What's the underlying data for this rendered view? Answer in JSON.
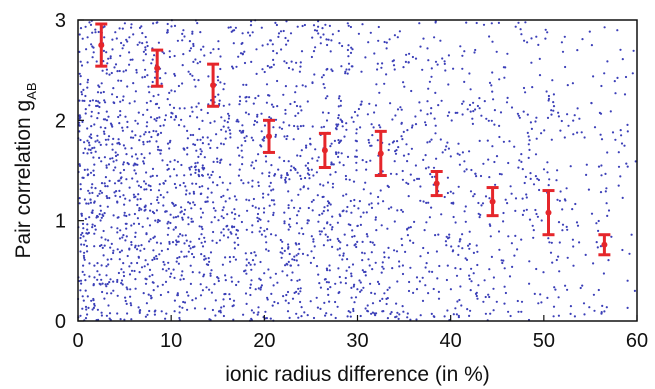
{
  "chart_data": {
    "type": "scatter",
    "xlabel": "ionic radius difference (in %)",
    "ylabel_main": "Pair correlation  g",
    "ylabel_sub": "AB",
    "xlim": [
      0,
      60
    ],
    "ylim": [
      0,
      3
    ],
    "xticks": [
      "0",
      "10",
      "20",
      "30",
      "40",
      "50",
      "60"
    ],
    "yticks": [
      "0",
      "1",
      "2",
      "3"
    ],
    "grid": false,
    "legend": "none",
    "colors": {
      "scatter": "#3b3fb8",
      "errorbar": "#e5262b",
      "axis": "#111111"
    },
    "series": [
      {
        "kind": "scatter-cloud",
        "description_of_distribution": "dense cloud of small points spanning x 0–60, y 0–3, density decreasing with x",
        "count": 2600
      },
      {
        "kind": "errorbar",
        "x": [
          2.5,
          8.5,
          14.5,
          20.5,
          26.5,
          32.5,
          38.5,
          44.5,
          50.5,
          56.5
        ],
        "y": [
          2.75,
          2.52,
          2.35,
          1.84,
          1.7,
          1.67,
          1.37,
          1.19,
          1.08,
          0.76
        ],
        "err": [
          0.21,
          0.18,
          0.21,
          0.16,
          0.17,
          0.22,
          0.12,
          0.14,
          0.22,
          0.1
        ]
      }
    ]
  }
}
